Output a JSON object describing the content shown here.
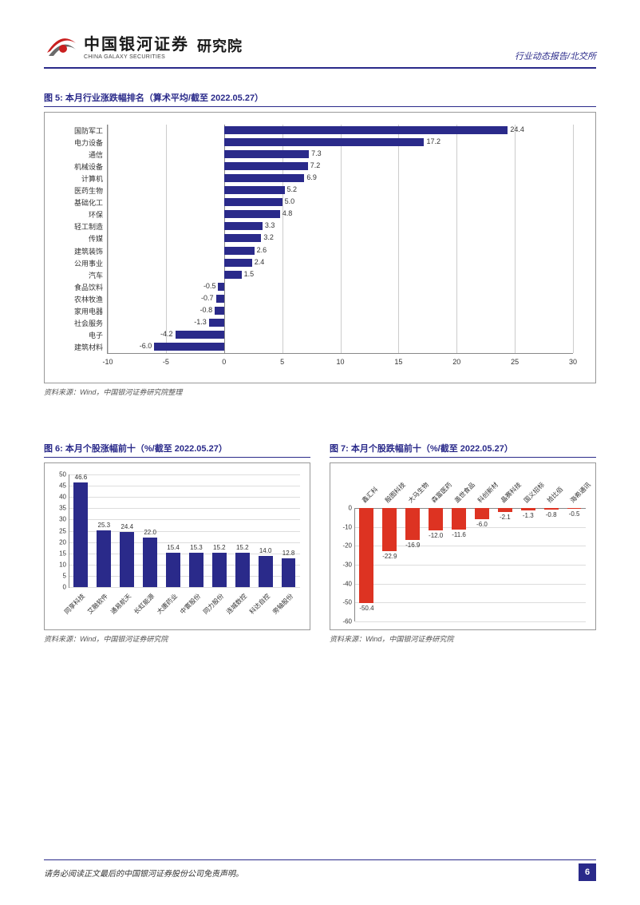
{
  "header": {
    "logo_cn": "中国银河证券",
    "logo_en": "CHINA GALAXY SECURITIES",
    "institute": "研究院",
    "right_text": "行业动态报告/北交所"
  },
  "chart5": {
    "title": "图 5: 本月行业涨跌幅排名（算术平均/截至 2022.05.27）",
    "type": "bar_horizontal",
    "xlim": [
      -10,
      30
    ],
    "xtick_step": 5,
    "bar_color": "#2a2a8a",
    "grid_color": "#cccccc",
    "background_color": "#ffffff",
    "label_fontsize": 9,
    "categories": [
      "国防军工",
      "电力设备",
      "通信",
      "机械设备",
      "计算机",
      "医药生物",
      "基础化工",
      "环保",
      "轻工制造",
      "传媒",
      "建筑装饰",
      "公用事业",
      "汽车",
      "食品饮料",
      "农林牧渔",
      "家用电器",
      "社会服务",
      "电子",
      "建筑材料"
    ],
    "values": [
      24.4,
      17.2,
      7.3,
      7.2,
      6.9,
      5.2,
      5.0,
      4.8,
      3.3,
      3.2,
      2.6,
      2.4,
      1.5,
      -0.5,
      -0.7,
      -0.8,
      -1.3,
      -4.2,
      -6.0
    ],
    "source": "资料来源：Wind，中国银河证券研究院整理"
  },
  "chart6": {
    "title": "图 6: 本月个股涨幅前十（%/截至 2022.05.27）",
    "type": "bar",
    "ylim": [
      0,
      50
    ],
    "ytick_step": 5,
    "bar_color": "#2a2a8a",
    "grid_color": "#dddddd",
    "categories": [
      "同享科技",
      "艾融软件",
      "通易航天",
      "长虹能源",
      "大唐药业",
      "中寰股份",
      "同力股份",
      "连城数控",
      "科达自控",
      "旁轴股份"
    ],
    "values": [
      46.6,
      25.3,
      24.4,
      22.0,
      15.4,
      15.3,
      15.2,
      15.2,
      14.0,
      12.8
    ],
    "source": "资料来源：Wind，中国银河证券研究院"
  },
  "chart7": {
    "title": "图 7: 本月个股跌幅前十（%/截至 2022.05.27）",
    "type": "bar",
    "ylim": [
      -60,
      0
    ],
    "ytick_step": 10,
    "bar_color": "#dd3322",
    "grid_color": "#dddddd",
    "categories": [
      "鑫汇科",
      "殷图科技",
      "大马生物",
      "森富医药",
      "盖世食品",
      "科创新材",
      "晶赛科技",
      "国义招标",
      "拾比佰",
      "海希通讯"
    ],
    "values": [
      -50.4,
      -22.9,
      -16.9,
      -12.0,
      -11.6,
      -6.0,
      -2.1,
      -1.3,
      -0.8,
      -0.5
    ],
    "source": "资料来源：Wind，中国银河证券研究院"
  },
  "footer": {
    "text": "请务必阅读正文最后的中国银河证券股份公司免责声明。",
    "page": "6"
  }
}
